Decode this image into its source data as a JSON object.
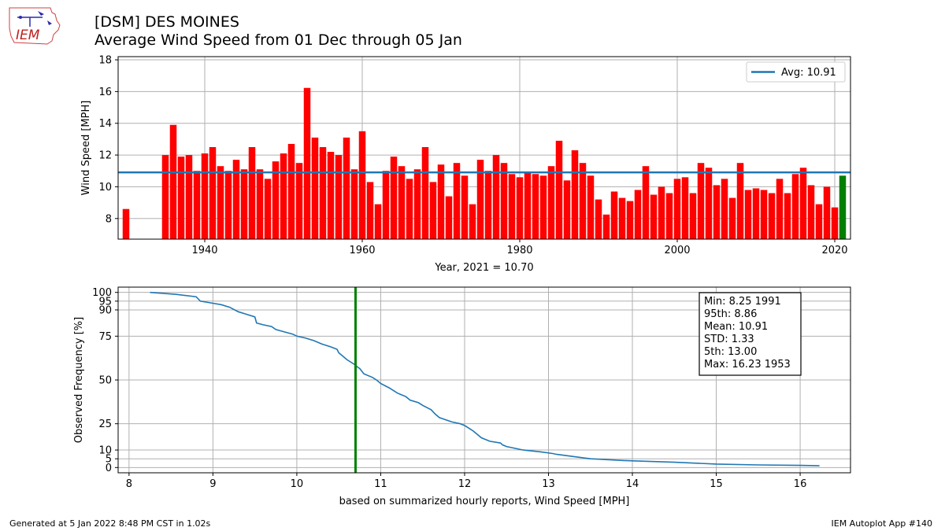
{
  "header": {
    "title_line1": "[DSM] DES MOINES",
    "title_line2": "Average Wind Speed from 01 Dec through 05 Jan",
    "logo_text": "IEM"
  },
  "footer": {
    "generated": "Generated at 5 Jan 2022 8:48 PM CST in 1.02s",
    "app": "IEM Autoplot App #140"
  },
  "colors": {
    "bar": "#ff0000",
    "highlight": "#008000",
    "avg_line": "#1f77b4",
    "cdf_line": "#1f77b4"
  },
  "chart_data": [
    {
      "type": "bar",
      "ylabel": "Wind Speed [MPH]",
      "xlabel": "Year, 2021 = 10.70",
      "xlim": [
        1930.0,
        1931.0
      ],
      "ylim": [
        6.7,
        18.2
      ],
      "xticks": [
        1940,
        1960,
        1980,
        2000,
        2020
      ],
      "yticks": [
        8,
        10,
        12,
        14,
        16,
        18
      ],
      "grid": true,
      "legend": {
        "position": "top-right",
        "label": "Avg: 10.91"
      },
      "average": 10.91,
      "highlight_year": 2021,
      "points": [
        {
          "x": 1930,
          "y": 8.6
        },
        {
          "x": 1935,
          "y": 12.0
        },
        {
          "x": 1936,
          "y": 13.9
        },
        {
          "x": 1937,
          "y": 11.9
        },
        {
          "x": 1938,
          "y": 12.0
        },
        {
          "x": 1939,
          "y": 11.0
        },
        {
          "x": 1940,
          "y": 12.1
        },
        {
          "x": 1941,
          "y": 12.5
        },
        {
          "x": 1942,
          "y": 11.3
        },
        {
          "x": 1943,
          "y": 11.0
        },
        {
          "x": 1944,
          "y": 11.7
        },
        {
          "x": 1945,
          "y": 11.1
        },
        {
          "x": 1946,
          "y": 12.5
        },
        {
          "x": 1947,
          "y": 11.1
        },
        {
          "x": 1948,
          "y": 10.5
        },
        {
          "x": 1949,
          "y": 11.6
        },
        {
          "x": 1950,
          "y": 12.1
        },
        {
          "x": 1951,
          "y": 12.7
        },
        {
          "x": 1952,
          "y": 11.5
        },
        {
          "x": 1953,
          "y": 16.23
        },
        {
          "x": 1954,
          "y": 13.1
        },
        {
          "x": 1955,
          "y": 12.5
        },
        {
          "x": 1956,
          "y": 12.2
        },
        {
          "x": 1957,
          "y": 12.0
        },
        {
          "x": 1958,
          "y": 13.1
        },
        {
          "x": 1959,
          "y": 11.1
        },
        {
          "x": 1960,
          "y": 13.5
        },
        {
          "x": 1961,
          "y": 10.3
        },
        {
          "x": 1962,
          "y": 8.9
        },
        {
          "x": 1963,
          "y": 11.0
        },
        {
          "x": 1964,
          "y": 11.9
        },
        {
          "x": 1965,
          "y": 11.3
        },
        {
          "x": 1966,
          "y": 10.5
        },
        {
          "x": 1967,
          "y": 11.1
        },
        {
          "x": 1968,
          "y": 12.5
        },
        {
          "x": 1969,
          "y": 10.3
        },
        {
          "x": 1970,
          "y": 11.4
        },
        {
          "x": 1971,
          "y": 9.4
        },
        {
          "x": 1972,
          "y": 11.5
        },
        {
          "x": 1973,
          "y": 10.7
        },
        {
          "x": 1974,
          "y": 8.9
        },
        {
          "x": 1975,
          "y": 11.7
        },
        {
          "x": 1976,
          "y": 11.0
        },
        {
          "x": 1977,
          "y": 12.0
        },
        {
          "x": 1978,
          "y": 11.5
        },
        {
          "x": 1979,
          "y": 10.8
        },
        {
          "x": 1980,
          "y": 10.6
        },
        {
          "x": 1981,
          "y": 10.9
        },
        {
          "x": 1982,
          "y": 10.8
        },
        {
          "x": 1983,
          "y": 10.7
        },
        {
          "x": 1984,
          "y": 11.3
        },
        {
          "x": 1985,
          "y": 12.9
        },
        {
          "x": 1986,
          "y": 10.4
        },
        {
          "x": 1987,
          "y": 12.3
        },
        {
          "x": 1988,
          "y": 11.5
        },
        {
          "x": 1989,
          "y": 10.7
        },
        {
          "x": 1990,
          "y": 9.2
        },
        {
          "x": 1991,
          "y": 8.25
        },
        {
          "x": 1992,
          "y": 9.7
        },
        {
          "x": 1993,
          "y": 9.3
        },
        {
          "x": 1994,
          "y": 9.1
        },
        {
          "x": 1995,
          "y": 9.8
        },
        {
          "x": 1996,
          "y": 11.3
        },
        {
          "x": 1997,
          "y": 9.5
        },
        {
          "x": 1998,
          "y": 10.0
        },
        {
          "x": 1999,
          "y": 9.6
        },
        {
          "x": 2000,
          "y": 10.5
        },
        {
          "x": 2001,
          "y": 10.6
        },
        {
          "x": 2002,
          "y": 9.6
        },
        {
          "x": 2003,
          "y": 11.5
        },
        {
          "x": 2004,
          "y": 11.2
        },
        {
          "x": 2005,
          "y": 10.1
        },
        {
          "x": 2006,
          "y": 10.5
        },
        {
          "x": 2007,
          "y": 9.3
        },
        {
          "x": 2008,
          "y": 11.5
        },
        {
          "x": 2009,
          "y": 9.8
        },
        {
          "x": 2010,
          "y": 9.9
        },
        {
          "x": 2011,
          "y": 9.8
        },
        {
          "x": 2012,
          "y": 9.6
        },
        {
          "x": 2013,
          "y": 10.5
        },
        {
          "x": 2014,
          "y": 9.6
        },
        {
          "x": 2015,
          "y": 10.8
        },
        {
          "x": 2016,
          "y": 11.2
        },
        {
          "x": 2017,
          "y": 10.1
        },
        {
          "x": 2018,
          "y": 8.9
        },
        {
          "x": 2019,
          "y": 10.0
        },
        {
          "x": 2020,
          "y": 8.7
        },
        {
          "x": 2021,
          "y": 10.7
        }
      ]
    },
    {
      "type": "line",
      "ylabel": "Observed Frequency [%]",
      "xlabel": "based on summarized hourly reports, Wind Speed [MPH]",
      "xlim": [
        7.87,
        16.6
      ],
      "ylim": [
        -3,
        103
      ],
      "xticks": [
        8,
        9,
        10,
        11,
        12,
        13,
        14,
        15,
        16
      ],
      "yticks": [
        0,
        5,
        10,
        25,
        50,
        75,
        90,
        95,
        100
      ],
      "grid": true,
      "vline": 10.7,
      "stats": [
        "Min: 8.25 1991",
        "95th: 8.86",
        "Mean: 10.91",
        "STD: 1.33",
        "5th: 13.00",
        "Max: 16.23 1953"
      ],
      "x": [
        8.25,
        8.55,
        8.8,
        8.85,
        9.0,
        9.1,
        9.2,
        9.3,
        9.4,
        9.5,
        9.52,
        9.6,
        9.7,
        9.75,
        9.95,
        10.0,
        10.1,
        10.2,
        10.3,
        10.4,
        10.48,
        10.5,
        10.55,
        10.6,
        10.7,
        10.72,
        10.75,
        10.8,
        10.9,
        10.95,
        11.0,
        11.1,
        11.2,
        11.3,
        11.35,
        11.45,
        11.5,
        11.6,
        11.65,
        11.7,
        11.85,
        11.95,
        12.0,
        12.1,
        12.2,
        12.3,
        12.43,
        12.45,
        12.5,
        12.7,
        12.9,
        13.05,
        13.1,
        13.5,
        13.9,
        14.5,
        15.0,
        15.5,
        16.0,
        16.23
      ],
      "y": [
        100,
        98.9,
        97.5,
        95,
        93.8,
        93,
        91.5,
        89,
        87.5,
        86,
        82.5,
        81.5,
        80.5,
        78.8,
        76.2,
        75,
        74,
        72.5,
        70.5,
        69,
        67.5,
        65.5,
        63.5,
        61.5,
        58.5,
        57.5,
        56.5,
        53.5,
        51.5,
        50,
        48,
        45.5,
        42.5,
        40.5,
        38.5,
        37,
        35.5,
        33,
        30.5,
        28.5,
        26,
        25,
        24,
        21,
        17,
        15,
        14,
        13,
        12,
        10,
        9,
        8,
        7.5,
        5,
        4,
        3,
        2,
        1.5,
        1.2,
        1
      ]
    }
  ]
}
